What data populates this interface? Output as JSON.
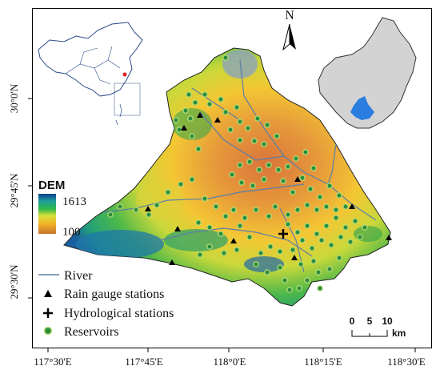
{
  "axes": {
    "x_ticks": [
      "117°30'E",
      "117°45'E",
      "118°0'E",
      "118°15'E",
      "118°30'E"
    ],
    "y_ticks": [
      "30°0'N",
      "29°45'N",
      "29°30'N"
    ]
  },
  "north_arrow": {
    "label": "N",
    "icon": "north-arrow-icon"
  },
  "dem_legend": {
    "title": "DEM",
    "max": "1613",
    "min": "100",
    "colors": [
      "#0a3f8f",
      "#1f9e9a",
      "#30b84a",
      "#d8e23a",
      "#f2b128",
      "#e38a3a",
      "#c8752f"
    ]
  },
  "legend": {
    "river": "River",
    "rain": "Rain gauge stations",
    "hydro": "Hydrological stations",
    "reservoir": "Reservoirs"
  },
  "scale_bar": {
    "labels": [
      "0",
      "5",
      "10"
    ],
    "unit": "km"
  },
  "colors": {
    "river": "#5a7fa8",
    "reservoir_fill": "#2f8f3f",
    "reservoir_ring": "#b9e27a",
    "inset_fill": "#d3d3d3",
    "basin_highlight": "#2b7de0"
  }
}
